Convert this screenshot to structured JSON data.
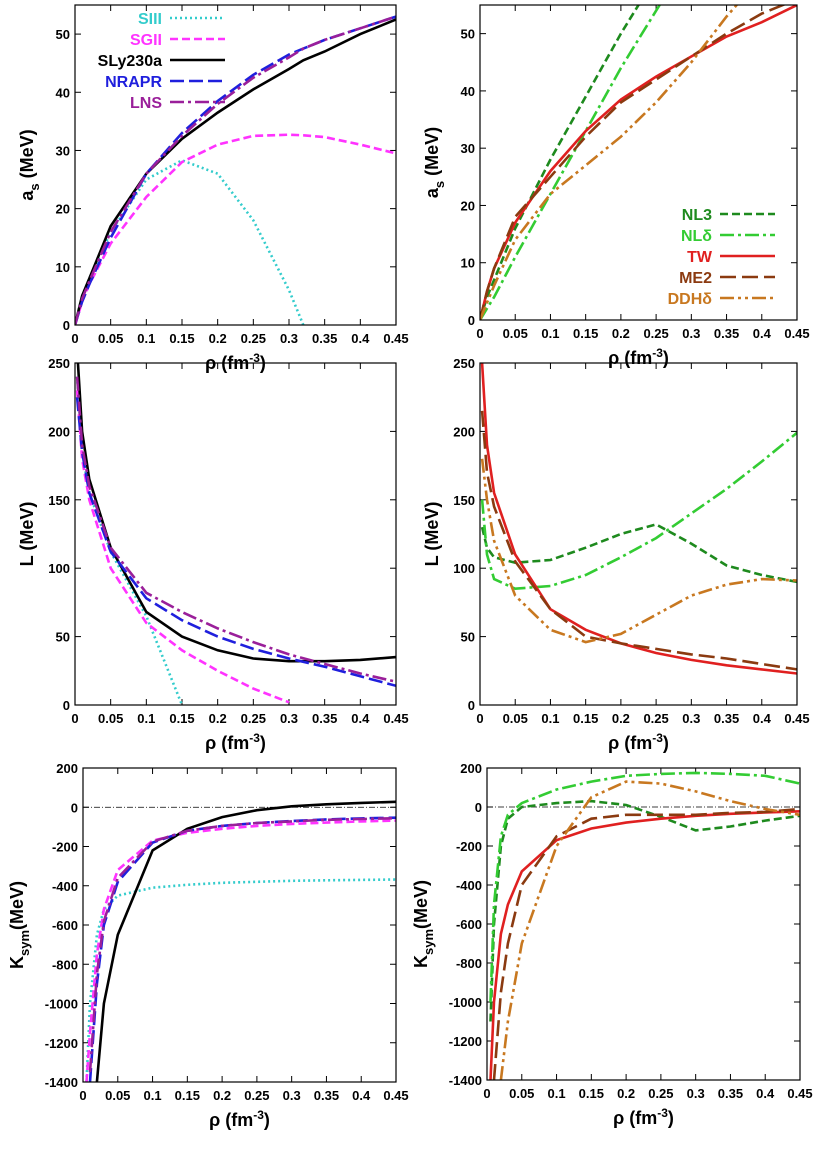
{
  "chart_data": [
    {
      "type": "line",
      "legend": "upper left",
      "xlabel": [
        "ρ (fm",
        "-3",
        ")"
      ],
      "ylabel": [
        "a",
        "s",
        " (MeV)"
      ],
      "xlim": [
        0,
        0.45
      ],
      "ylim": [
        0,
        55
      ],
      "xticks": [
        0,
        0.05,
        0.1,
        0.15,
        0.2,
        0.25,
        0.3,
        0.35,
        0.4,
        0.45
      ],
      "yticks": [
        0,
        10,
        20,
        30,
        40,
        50
      ],
      "x": [
        0,
        0.01,
        0.02,
        0.05,
        0.1,
        0.15,
        0.2,
        0.25,
        0.3,
        0.32,
        0.35,
        0.4,
        0.45
      ],
      "series": [
        {
          "name": "SIII",
          "color": "#33cccc",
          "dash": "2,3",
          "values": [
            0,
            5,
            8,
            16,
            25,
            28.3,
            26,
            18,
            6,
            0,
            null,
            null,
            null
          ]
        },
        {
          "name": "SGII",
          "color": "#ff33ff",
          "dash": "8,4",
          "values": [
            0,
            4,
            7,
            14,
            22,
            28,
            31,
            32.5,
            32.7,
            32.6,
            32.3,
            31,
            29.5
          ]
        },
        {
          "name": "SLy230a",
          "color": "#000000",
          "dash": "",
          "values": [
            0,
            5,
            8,
            17,
            26,
            32,
            36.5,
            40.5,
            44,
            45.5,
            47,
            50,
            52.5
          ]
        },
        {
          "name": "NRAPR",
          "color": "#1f1fdd",
          "dash": "14,5",
          "values": [
            0,
            4,
            7,
            15,
            26,
            33,
            38.5,
            43,
            46.5,
            47.5,
            49,
            51,
            53
          ]
        },
        {
          "name": "LNS",
          "color": "#9a1f9a",
          "dash": "14,4,3,4",
          "values": [
            0,
            4.5,
            7.5,
            16,
            26,
            32.5,
            38,
            42.5,
            46,
            47.5,
            49,
            51,
            53
          ]
        }
      ]
    },
    {
      "type": "line",
      "legend": "lower right",
      "xlabel": [
        "ρ (fm",
        "-3",
        ")"
      ],
      "ylabel": [
        "a",
        "s",
        " (MeV)"
      ],
      "xlim": [
        0,
        0.45
      ],
      "ylim": [
        0,
        55
      ],
      "xticks": [
        0,
        0.05,
        0.1,
        0.15,
        0.2,
        0.25,
        0.3,
        0.35,
        0.4,
        0.45
      ],
      "yticks": [
        0,
        10,
        20,
        30,
        40,
        50
      ],
      "x": [
        0,
        0.01,
        0.02,
        0.05,
        0.1,
        0.15,
        0.2,
        0.25,
        0.3,
        0.35,
        0.4,
        0.45
      ],
      "series": [
        {
          "name": "NL3",
          "color": "#1e8a1e",
          "dash": "8,4",
          "values": [
            0,
            4,
            7,
            16,
            28,
            39,
            50,
            60,
            null,
            null,
            null,
            null
          ]
        },
        {
          "name": "NLδ",
          "color": "#33cc33",
          "dash": "14,4,3,4",
          "values": [
            0,
            2,
            4,
            11,
            22,
            33,
            44,
            54,
            64,
            null,
            null,
            null
          ]
        },
        {
          "name": "TW",
          "color": "#e02020",
          "dash": "",
          "values": [
            0,
            5,
            9,
            17,
            26,
            33,
            38.5,
            42.5,
            46,
            49.5,
            52,
            55
          ]
        },
        {
          "name": "ME2",
          "color": "#8b3a10",
          "dash": "16,6",
          "values": [
            0,
            5,
            9,
            18,
            25,
            32,
            38,
            42,
            46,
            50,
            53.5,
            56
          ]
        },
        {
          "name": "DDHδ",
          "color": "#c87820",
          "dash": "14,4,3,4,3,4",
          "values": [
            0,
            3,
            6,
            14,
            22,
            27,
            32,
            38,
            45,
            53,
            60,
            null
          ]
        }
      ]
    },
    {
      "type": "line",
      "xlabel": [
        "ρ (fm",
        "-3",
        ")"
      ],
      "ylabel": [
        "L (MeV)"
      ],
      "xlim": [
        0,
        0.45
      ],
      "ylim": [
        0,
        250
      ],
      "xticks": [
        0,
        0.05,
        0.1,
        0.15,
        0.2,
        0.25,
        0.3,
        0.35,
        0.4,
        0.45
      ],
      "yticks": [
        0,
        50,
        100,
        150,
        200,
        250
      ],
      "x": [
        0.003,
        0.01,
        0.02,
        0.05,
        0.1,
        0.15,
        0.2,
        0.25,
        0.3,
        0.35,
        0.4,
        0.45
      ],
      "series": [
        {
          "color": "#33cccc",
          "dash": "2,3",
          "values": [
            240,
            185,
            155,
            112,
            65,
            0,
            null,
            null,
            null,
            null,
            null,
            null
          ]
        },
        {
          "color": "#ff33ff",
          "dash": "8,4",
          "values": [
            230,
            180,
            150,
            100,
            60,
            40,
            25,
            12,
            2,
            null,
            null,
            null
          ]
        },
        {
          "color": "#000000",
          "dash": "",
          "values": [
            260,
            200,
            165,
            115,
            68,
            50,
            40,
            34,
            32,
            32,
            33,
            35
          ]
        },
        {
          "color": "#1f1fdd",
          "dash": "14,5",
          "values": [
            225,
            185,
            155,
            112,
            78,
            62,
            50,
            41,
            34,
            28,
            21,
            14
          ]
        },
        {
          "color": "#9a1f9a",
          "dash": "14,4,3,4",
          "values": [
            240,
            190,
            160,
            115,
            82,
            68,
            56,
            46,
            37,
            30,
            23,
            17
          ]
        }
      ]
    },
    {
      "type": "line",
      "xlabel": [
        "ρ (fm",
        "-3",
        ")"
      ],
      "ylabel": [
        "L (MeV)"
      ],
      "xlim": [
        0,
        0.45
      ],
      "ylim": [
        0,
        250
      ],
      "xticks": [
        0,
        0.05,
        0.1,
        0.15,
        0.2,
        0.25,
        0.3,
        0.35,
        0.4,
        0.45
      ],
      "yticks": [
        0,
        50,
        100,
        150,
        200,
        250
      ],
      "x": [
        0.003,
        0.01,
        0.02,
        0.05,
        0.1,
        0.15,
        0.2,
        0.25,
        0.3,
        0.35,
        0.4,
        0.45
      ],
      "series": [
        {
          "color": "#1e8a1e",
          "dash": "8,4",
          "values": [
            130,
            115,
            108,
            104,
            106,
            115,
            125,
            132,
            118,
            102,
            95,
            90
          ]
        },
        {
          "color": "#33cc33",
          "dash": "14,4,3,4",
          "values": [
            150,
            110,
            92,
            85,
            87,
            95,
            108,
            122,
            140,
            158,
            178,
            199
          ]
        },
        {
          "color": "#e02020",
          "dash": "",
          "values": [
            250,
            190,
            155,
            110,
            70,
            55,
            45,
            38,
            33,
            29,
            26,
            23
          ]
        },
        {
          "color": "#8b3a10",
          "dash": "16,6",
          "values": [
            215,
            170,
            145,
            105,
            70,
            50,
            45,
            41,
            37,
            34,
            30,
            26
          ]
        },
        {
          "color": "#c87820",
          "dash": "14,4,3,4,3,4",
          "values": [
            180,
            150,
            120,
            80,
            55,
            46,
            52,
            66,
            80,
            88,
            92,
            91
          ]
        }
      ]
    },
    {
      "type": "line",
      "hline": 0,
      "xlabel": [
        "ρ (fm",
        "-3",
        ")"
      ],
      "ylabel": [
        "K",
        "sym",
        "(MeV)"
      ],
      "xlim": [
        0,
        0.45
      ],
      "ylim": [
        -1400,
        200
      ],
      "xticks": [
        0,
        0.05,
        0.1,
        0.15,
        0.2,
        0.25,
        0.3,
        0.35,
        0.4,
        0.45
      ],
      "yticks": [
        -1400,
        -1200,
        -1000,
        -800,
        -600,
        -400,
        -200,
        0,
        200
      ],
      "x": [
        0.005,
        0.01,
        0.02,
        0.03,
        0.05,
        0.1,
        0.15,
        0.2,
        0.25,
        0.3,
        0.35,
        0.4,
        0.45
      ],
      "series": [
        {
          "color": "#33cccc",
          "dash": "2,3",
          "values": [
            -1400,
            -1000,
            -650,
            -520,
            -450,
            -410,
            -395,
            -385,
            -380,
            -375,
            -372,
            -370,
            -368
          ]
        },
        {
          "color": "#ff33ff",
          "dash": "8,4",
          "values": [
            -1400,
            -1150,
            -750,
            -520,
            -320,
            -170,
            -130,
            -110,
            -95,
            -85,
            -78,
            -72,
            -68
          ]
        },
        {
          "color": "#000000",
          "dash": "",
          "values": [
            null,
            null,
            -1400,
            -1000,
            -650,
            -220,
            -110,
            -50,
            -15,
            5,
            15,
            22,
            28
          ]
        },
        {
          "color": "#1f1fdd",
          "dash": "14,5",
          "values": [
            null,
            -1400,
            -900,
            -600,
            -380,
            -180,
            -120,
            -95,
            -80,
            -70,
            -62,
            -57,
            -53
          ]
        },
        {
          "color": "#9a1f9a",
          "dash": "14,4,3,4",
          "values": [
            null,
            -1350,
            -850,
            -580,
            -360,
            -175,
            -120,
            -95,
            -80,
            -72,
            -64,
            -60,
            -56
          ]
        }
      ]
    },
    {
      "type": "line",
      "hline": 0,
      "xlabel": [
        "ρ (fm",
        "-3",
        ")"
      ],
      "ylabel": [
        "K",
        "sym",
        "(MeV)"
      ],
      "xlim": [
        0,
        0.45
      ],
      "ylim": [
        -1400,
        200
      ],
      "xticks": [
        0,
        0.05,
        0.1,
        0.15,
        0.2,
        0.25,
        0.3,
        0.35,
        0.4,
        0.45
      ],
      "yticks": [
        -1400,
        -1200,
        -1000,
        -800,
        -600,
        -400,
        -200,
        0,
        200
      ],
      "x": [
        0.005,
        0.01,
        0.02,
        0.03,
        0.05,
        0.1,
        0.15,
        0.2,
        0.25,
        0.3,
        0.35,
        0.4,
        0.45
      ],
      "series": [
        {
          "color": "#1e8a1e",
          "dash": "8,4",
          "values": [
            -1100,
            -600,
            -200,
            -60,
            0,
            20,
            30,
            10,
            -50,
            -120,
            -100,
            -70,
            -45
          ]
        },
        {
          "color": "#33cc33",
          "dash": "14,4,3,4",
          "values": [
            -1000,
            -500,
            -150,
            -40,
            20,
            90,
            130,
            160,
            170,
            175,
            170,
            160,
            120
          ]
        },
        {
          "color": "#e02020",
          "dash": "",
          "values": [
            -1400,
            -1000,
            -650,
            -500,
            -330,
            -170,
            -110,
            -80,
            -60,
            -45,
            -35,
            -28,
            -22
          ]
        },
        {
          "color": "#8b3a10",
          "dash": "16,6",
          "values": [
            null,
            -1400,
            -950,
            -700,
            -400,
            -150,
            -60,
            -40,
            -40,
            -40,
            -30,
            -25,
            -10
          ]
        },
        {
          "color": "#c87820",
          "dash": "14,4,3,4,3,4",
          "values": [
            null,
            null,
            -1400,
            -1100,
            -700,
            -200,
            50,
            130,
            120,
            80,
            30,
            -10,
            -40
          ]
        }
      ]
    }
  ]
}
